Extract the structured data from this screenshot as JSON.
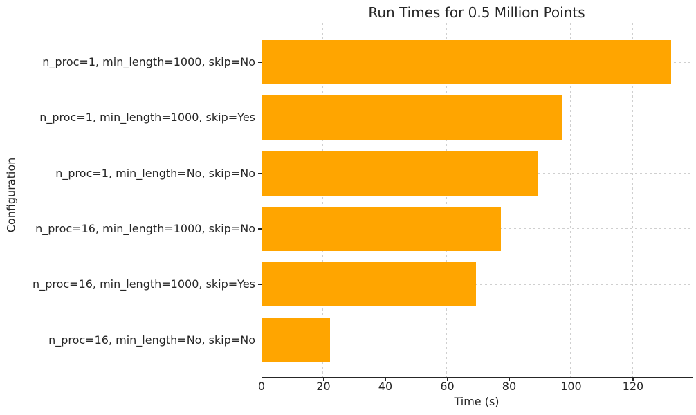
{
  "chart_data": {
    "type": "bar",
    "orientation": "horizontal",
    "title": "Run Times for 0.5 Million Points",
    "xlabel": "Time (s)",
    "ylabel": "Configuration",
    "categories": [
      "n_proc=1, min_length=1000, skip=No",
      "n_proc=1, min_length=1000, skip=Yes",
      "n_proc=1, min_length=No, skip=No",
      "n_proc=16, min_length=1000, skip=No",
      "n_proc=16, min_length=1000, skip=Yes",
      "n_proc=16, min_length=No, skip=No"
    ],
    "values": [
      132,
      97,
      89,
      77,
      69,
      22
    ],
    "xlim": [
      0,
      139
    ],
    "xticks": [
      0,
      20,
      40,
      60,
      80,
      100,
      120
    ],
    "bar_color": "#FFA500",
    "grid": true,
    "grid_style": "dashed",
    "grid_color": "#cfcfcf",
    "spine_color": "#262626",
    "text_color": "#262626",
    "background": "#ffffff",
    "legend": "none"
  }
}
